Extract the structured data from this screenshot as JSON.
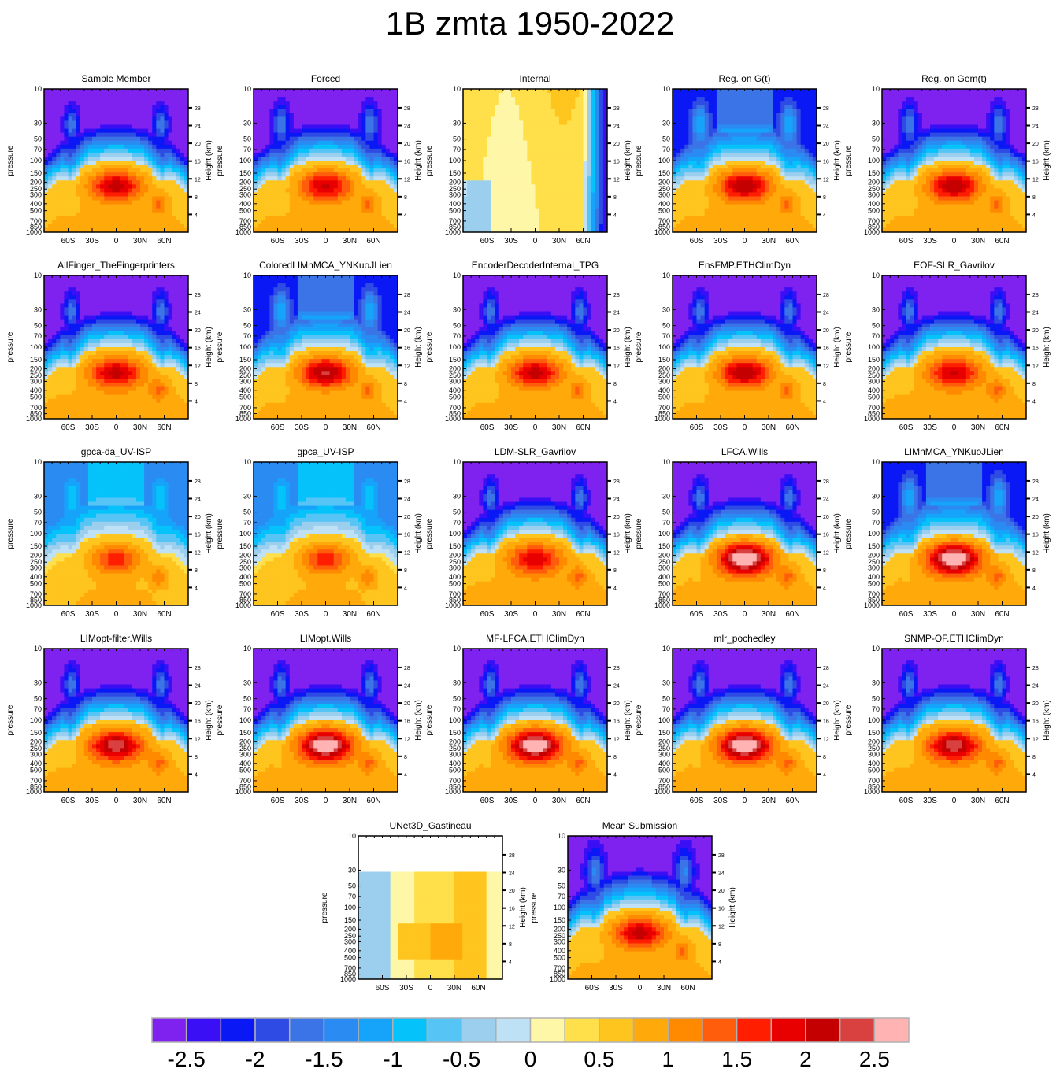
{
  "figure": {
    "title": "1B zmta 1950-2022"
  },
  "axes": {
    "pressure_label": "pressure",
    "height_label": "Height (km)",
    "pressure_ticks": [
      "10",
      "30",
      "50",
      "70",
      "100",
      "150",
      "200",
      "250",
      "300",
      "400",
      "500",
      "700",
      "850",
      "1000"
    ],
    "pressure_values": [
      10,
      30,
      50,
      70,
      100,
      150,
      200,
      250,
      300,
      400,
      500,
      700,
      850,
      1000
    ],
    "height_ticks": [
      "28",
      "24",
      "20",
      "16",
      "12",
      "8",
      "4"
    ],
    "height_values": [
      28,
      24,
      20,
      16,
      12,
      8,
      4
    ],
    "lat_ticks": [
      "60S",
      "30S",
      "0",
      "30N",
      "60N"
    ],
    "lat_values": [
      -60,
      -30,
      0,
      30,
      60
    ],
    "lat_range": [
      -90,
      90
    ],
    "pressure_range": [
      1000,
      10
    ]
  },
  "colorbar": {
    "levels": [
      "-2.5",
      "-2",
      "-1.5",
      "-1",
      "-0.5",
      "0",
      "0.5",
      "1",
      "1.5",
      "2",
      "2.5"
    ],
    "level_values": [
      -2.5,
      -2,
      -1.5,
      -1,
      -0.5,
      0,
      0.5,
      1,
      1.5,
      2,
      2.5
    ],
    "colors": [
      "#7f22f0",
      "#3b0ff5",
      "#0a18f5",
      "#2e4ce4",
      "#3b74e6",
      "#2a8bf3",
      "#16a4fb",
      "#05c3fa",
      "#56c4f5",
      "#9ccfee",
      "#bfe1f5",
      "#fff7a8",
      "#ffdf4a",
      "#ffc51f",
      "#ffa90a",
      "#ff8a00",
      "#ff5c0c",
      "#ff1f00",
      "#e80000",
      "#c40000",
      "#d94040",
      "#ffb3b3"
    ]
  },
  "chart_data": [
    {
      "type": "heatmap",
      "title": "Sample Member",
      "pattern": "standard",
      "core": 2.0,
      "trop": 0.55,
      "strat": -2.8,
      "edge": false
    },
    {
      "type": "heatmap",
      "title": "Forced",
      "pattern": "standard",
      "core": 1.9,
      "trop": 0.55,
      "strat": -2.7,
      "edge": false
    },
    {
      "type": "heatmap",
      "title": "Internal",
      "pattern": "internal",
      "core": 0.4,
      "trop": 0.2,
      "strat": 0.1,
      "edge": false
    },
    {
      "type": "heatmap",
      "title": "Reg. on G(t)",
      "pattern": "standard",
      "core": 2.1,
      "trop": 0.55,
      "strat": -2.2,
      "edge": false
    },
    {
      "type": "heatmap",
      "title": "Reg. on Gem(t)",
      "pattern": "standard",
      "core": 2.1,
      "trop": 0.55,
      "strat": -2.7,
      "edge": false
    },
    {
      "type": "heatmap",
      "title": "AllFinger_TheFingerprinters",
      "pattern": "standard",
      "core": 2.0,
      "trop": 0.6,
      "strat": -2.8,
      "edge": false
    },
    {
      "type": "heatmap",
      "title": "ColoredLIMnMCA_YNKuoJLien",
      "pattern": "standard",
      "core": 2.2,
      "trop": 0.55,
      "strat": -2.2,
      "edge": false
    },
    {
      "type": "heatmap",
      "title": "EncoderDecoderInternal_TPG",
      "pattern": "standard",
      "core": 2.0,
      "trop": 0.55,
      "strat": -2.8,
      "edge": false
    },
    {
      "type": "heatmap",
      "title": "EnsFMP.ETHClimDyn",
      "pattern": "standard",
      "core": 2.1,
      "trop": 0.55,
      "strat": -2.8,
      "edge": false
    },
    {
      "type": "heatmap",
      "title": "EOF-SLR_Gavrilov",
      "pattern": "standard",
      "core": 1.9,
      "trop": 0.6,
      "strat": -2.8,
      "edge": false
    },
    {
      "type": "heatmap",
      "title": "gpca-da_UV-ISP",
      "pattern": "weak",
      "core": 1.5,
      "trop": 0.45,
      "strat": -1.5,
      "edge": false
    },
    {
      "type": "heatmap",
      "title": "gpca_UV-ISP",
      "pattern": "weak",
      "core": 1.5,
      "trop": 0.45,
      "strat": -1.5,
      "edge": false
    },
    {
      "type": "heatmap",
      "title": "LDM-SLR_Gavrilov",
      "pattern": "standard",
      "core": 1.8,
      "trop": 0.6,
      "strat": -2.8,
      "edge": false
    },
    {
      "type": "heatmap",
      "title": "LFCA.Wills",
      "pattern": "standard",
      "core": 2.8,
      "trop": 0.6,
      "strat": -2.8,
      "edge": false
    },
    {
      "type": "heatmap",
      "title": "LIMnMCA_YNKuoJLien",
      "pattern": "standard",
      "core": 2.8,
      "trop": 0.6,
      "strat": -2.2,
      "edge": false
    },
    {
      "type": "heatmap",
      "title": "LIMopt-filter.Wills",
      "pattern": "standard",
      "core": 2.3,
      "trop": 0.6,
      "strat": -2.8,
      "edge": false
    },
    {
      "type": "heatmap",
      "title": "LIMopt.Wills",
      "pattern": "standard",
      "core": 2.8,
      "trop": 0.6,
      "strat": -2.8,
      "edge": false
    },
    {
      "type": "heatmap",
      "title": "MF-LFCA.ETHClimDyn",
      "pattern": "standard",
      "core": 2.8,
      "trop": 0.6,
      "strat": -2.8,
      "edge": false
    },
    {
      "type": "heatmap",
      "title": "mlr_pochedley",
      "pattern": "standard",
      "core": 2.8,
      "trop": 0.6,
      "strat": -2.8,
      "edge": false
    },
    {
      "type": "heatmap",
      "title": "SNMP-OF.ETHClimDyn",
      "pattern": "standard",
      "core": 2.3,
      "trop": 0.6,
      "strat": -2.8,
      "edge": false
    },
    {
      "type": "heatmap",
      "title": "UNet3D_Gastineau",
      "pattern": "unet",
      "core": 0.6,
      "trop": 0.4,
      "strat": -0.3,
      "edge": true
    },
    {
      "type": "heatmap",
      "title": "Mean Submission",
      "pattern": "standard",
      "core": 2.0,
      "trop": 0.55,
      "strat": -2.6,
      "edge": false
    }
  ]
}
